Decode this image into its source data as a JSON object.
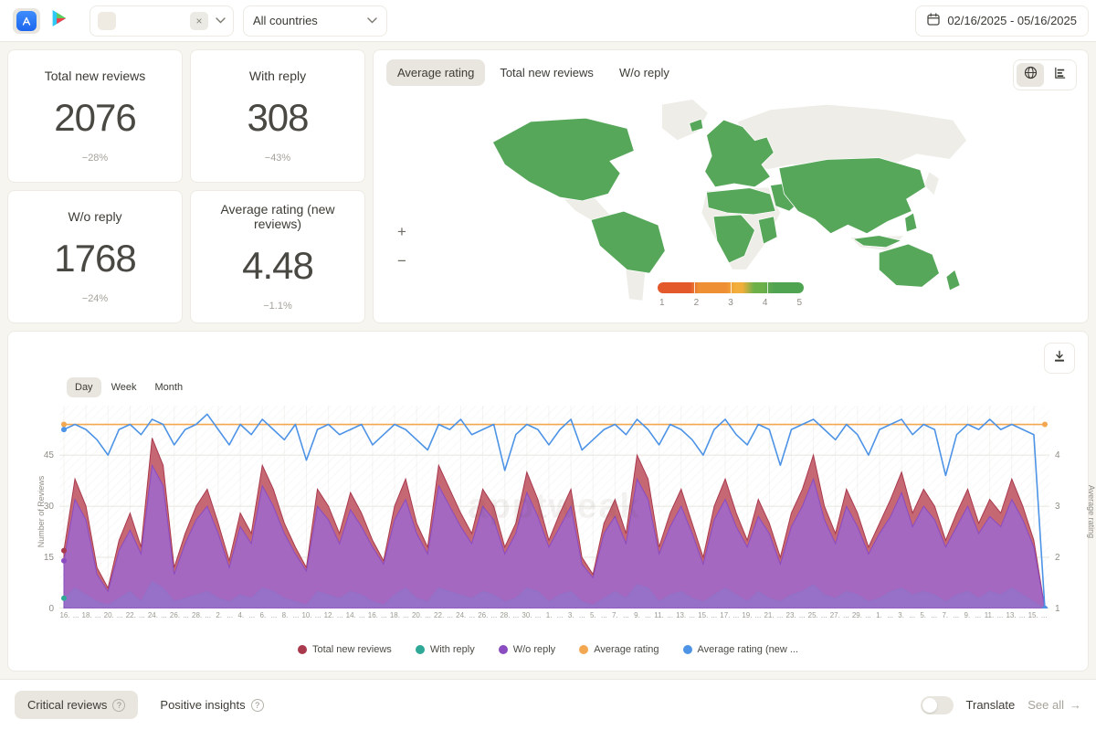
{
  "topbar": {
    "platforms": [
      {
        "name": "app-store",
        "active": true
      },
      {
        "name": "google-play",
        "active": false
      }
    ],
    "app_select": {
      "clear_label": "×"
    },
    "country_select": {
      "value": "All countries"
    },
    "date_range": "02/16/2025 - 05/16/2025"
  },
  "stats": [
    {
      "label": "Total new reviews",
      "value": "2076",
      "delta": "−28%"
    },
    {
      "label": "With reply",
      "value": "308",
      "delta": "−43%"
    },
    {
      "label": "W/o reply",
      "value": "1768",
      "delta": "−24%"
    },
    {
      "label": "Average rating (new reviews)",
      "value": "4.48",
      "delta": "−1.1%"
    }
  ],
  "map_panel": {
    "tabs": [
      {
        "label": "Average rating",
        "active": true
      },
      {
        "label": "Total new reviews",
        "active": false
      },
      {
        "label": "W/o reply",
        "active": false
      }
    ],
    "zoom_in": "+",
    "zoom_out": "−",
    "map_colors": {
      "land": "#eeede7",
      "highlight": "#57a75b"
    },
    "scale": {
      "colors": [
        "#e4592c",
        "#ee8f33",
        "#f2ae3a",
        "#6db04a",
        "#4fa452"
      ],
      "ticks": [
        "1",
        "2",
        "3",
        "4",
        "5"
      ]
    }
  },
  "chart_panel": {
    "granularity": [
      {
        "label": "Day",
        "active": true
      },
      {
        "label": "Week",
        "active": false
      },
      {
        "label": "Month",
        "active": false
      }
    ],
    "watermark": "apptweak",
    "y_left_label": "Number of Reviews",
    "y_right_label": "Average rating"
  },
  "chart_data": {
    "type": "area",
    "x_labels": [
      "16.",
      "...",
      "18.",
      "...",
      "20.",
      "...",
      "22.",
      "...",
      "24.",
      "...",
      "26.",
      "...",
      "28.",
      "...",
      "2.",
      "...",
      "4.",
      "...",
      "6.",
      "...",
      "8.",
      "...",
      "10.",
      "...",
      "12.",
      "...",
      "14.",
      "...",
      "16.",
      "...",
      "18.",
      "...",
      "20.",
      "...",
      "22.",
      "...",
      "24.",
      "...",
      "26.",
      "...",
      "28.",
      "...",
      "30.",
      "...",
      "1.",
      "...",
      "3.",
      "...",
      "5.",
      "...",
      "7.",
      "...",
      "9.",
      "...",
      "11.",
      "...",
      "13.",
      "...",
      "15.",
      "...",
      "17.",
      "...",
      "19.",
      "...",
      "21.",
      "...",
      "23.",
      "...",
      "25.",
      "...",
      "27.",
      "...",
      "29.",
      "...",
      "1.",
      "...",
      "3.",
      "...",
      "5.",
      "...",
      "7.",
      "...",
      "9.",
      "...",
      "11.",
      "...",
      "13.",
      "...",
      "15.",
      "..."
    ],
    "y_left": {
      "ticks": [
        0,
        15,
        30,
        45
      ],
      "max": 59.5
    },
    "y_right": {
      "ticks": [
        1,
        2,
        3,
        4
      ]
    },
    "series": [
      {
        "name": "Total new reviews",
        "kind": "area",
        "axis": "left",
        "color": "#a93a4e",
        "fill": "#c15b68",
        "opacity": 0.92,
        "values": [
          17,
          38,
          30,
          12,
          6,
          20,
          28,
          18,
          50,
          42,
          12,
          22,
          30,
          35,
          25,
          14,
          28,
          22,
          42,
          35,
          25,
          18,
          12,
          35,
          30,
          22,
          34,
          28,
          20,
          14,
          30,
          38,
          25,
          18,
          42,
          35,
          28,
          22,
          35,
          30,
          18,
          25,
          40,
          32,
          20,
          28,
          35,
          15,
          10,
          25,
          32,
          22,
          45,
          38,
          18,
          28,
          35,
          25,
          15,
          30,
          38,
          28,
          20,
          32,
          25,
          15,
          28,
          35,
          45,
          30,
          22,
          35,
          28,
          18,
          25,
          32,
          40,
          28,
          35,
          30,
          20,
          28,
          35,
          25,
          32,
          28,
          38,
          30,
          20,
          0
        ]
      },
      {
        "name": "With reply",
        "kind": "area",
        "axis": "left",
        "color": "#2fa898",
        "fill": "#52c0b0",
        "opacity": 0.9,
        "values": [
          3,
          6,
          4,
          2,
          1,
          3,
          5,
          2,
          8,
          6,
          2,
          3,
          4,
          5,
          3,
          2,
          4,
          3,
          6,
          5,
          3,
          2,
          1,
          5,
          4,
          3,
          5,
          4,
          2,
          1,
          4,
          6,
          3,
          2,
          6,
          5,
          4,
          3,
          5,
          4,
          2,
          3,
          6,
          5,
          2,
          4,
          5,
          2,
          1,
          3,
          5,
          3,
          7,
          6,
          2,
          4,
          5,
          3,
          2,
          4,
          6,
          4,
          2,
          5,
          3,
          2,
          4,
          5,
          7,
          4,
          3,
          5,
          4,
          2,
          3,
          5,
          6,
          4,
          5,
          4,
          2,
          4,
          5,
          3,
          5,
          4,
          6,
          4,
          2,
          0
        ]
      },
      {
        "name": "W/o reply",
        "kind": "area",
        "axis": "left",
        "color": "#8a4cc0",
        "fill": "#9f68cc",
        "opacity": 0.88,
        "values": [
          14,
          32,
          26,
          10,
          5,
          17,
          23,
          16,
          42,
          36,
          10,
          19,
          26,
          30,
          22,
          12,
          24,
          19,
          36,
          30,
          22,
          16,
          11,
          30,
          26,
          19,
          29,
          24,
          18,
          13,
          26,
          32,
          22,
          16,
          36,
          30,
          24,
          19,
          30,
          26,
          16,
          22,
          34,
          27,
          18,
          24,
          30,
          13,
          9,
          22,
          27,
          19,
          38,
          32,
          16,
          24,
          30,
          22,
          13,
          26,
          32,
          24,
          18,
          27,
          22,
          13,
          24,
          30,
          38,
          26,
          19,
          30,
          24,
          16,
          22,
          27,
          34,
          24,
          30,
          26,
          18,
          24,
          30,
          22,
          27,
          24,
          32,
          26,
          18,
          0
        ]
      },
      {
        "name": "Average rating",
        "kind": "line",
        "axis": "right",
        "color": "#f3a750",
        "values": [
          4.6,
          4.6,
          4.6,
          4.6,
          4.6,
          4.6,
          4.6,
          4.6,
          4.6,
          4.6,
          4.6,
          4.6,
          4.6,
          4.6,
          4.6,
          4.6,
          4.6,
          4.6,
          4.6,
          4.6,
          4.6,
          4.6,
          4.6,
          4.6,
          4.6,
          4.6,
          4.6,
          4.6,
          4.6,
          4.6,
          4.6,
          4.6,
          4.6,
          4.6,
          4.6,
          4.6,
          4.6,
          4.6,
          4.6,
          4.6,
          4.6,
          4.6,
          4.6,
          4.6,
          4.6,
          4.6,
          4.6,
          4.6,
          4.6,
          4.6,
          4.6,
          4.6,
          4.6,
          4.6,
          4.6,
          4.6,
          4.6,
          4.6,
          4.6,
          4.6,
          4.6,
          4.6,
          4.6,
          4.6,
          4.6,
          4.6,
          4.6,
          4.6,
          4.6,
          4.6,
          4.6,
          4.6,
          4.6,
          4.6,
          4.6,
          4.6,
          4.6,
          4.6,
          4.6,
          4.6,
          4.6,
          4.6,
          4.6,
          4.6,
          4.6,
          4.6,
          4.6,
          4.6,
          4.6,
          4.6
        ]
      },
      {
        "name": "Average rating (new ...",
        "kind": "line",
        "axis": "right",
        "color": "#4d93e6",
        "values": [
          4.5,
          4.6,
          4.5,
          4.3,
          4.0,
          4.5,
          4.6,
          4.4,
          4.7,
          4.6,
          4.2,
          4.5,
          4.6,
          4.8,
          4.5,
          4.2,
          4.6,
          4.4,
          4.7,
          4.5,
          4.3,
          4.6,
          3.9,
          4.5,
          4.6,
          4.4,
          4.5,
          4.6,
          4.2,
          4.4,
          4.6,
          4.5,
          4.3,
          4.1,
          4.6,
          4.5,
          4.7,
          4.4,
          4.5,
          4.6,
          3.7,
          4.4,
          4.6,
          4.5,
          4.2,
          4.5,
          4.7,
          4.1,
          4.3,
          4.5,
          4.6,
          4.4,
          4.7,
          4.5,
          4.2,
          4.6,
          4.5,
          4.3,
          4.0,
          4.5,
          4.7,
          4.4,
          4.2,
          4.6,
          4.5,
          3.8,
          4.5,
          4.6,
          4.7,
          4.5,
          4.3,
          4.6,
          4.4,
          4.0,
          4.5,
          4.6,
          4.7,
          4.4,
          4.6,
          4.5,
          3.6,
          4.4,
          4.6,
          4.5,
          4.7,
          4.5,
          4.6,
          4.5,
          4.4,
          1.0
        ]
      }
    ]
  },
  "footer": {
    "critical_label": "Critical reviews",
    "positive_label": "Positive insights",
    "translate_label": "Translate",
    "see_all_label": "See all",
    "see_all_arrow": "→"
  }
}
